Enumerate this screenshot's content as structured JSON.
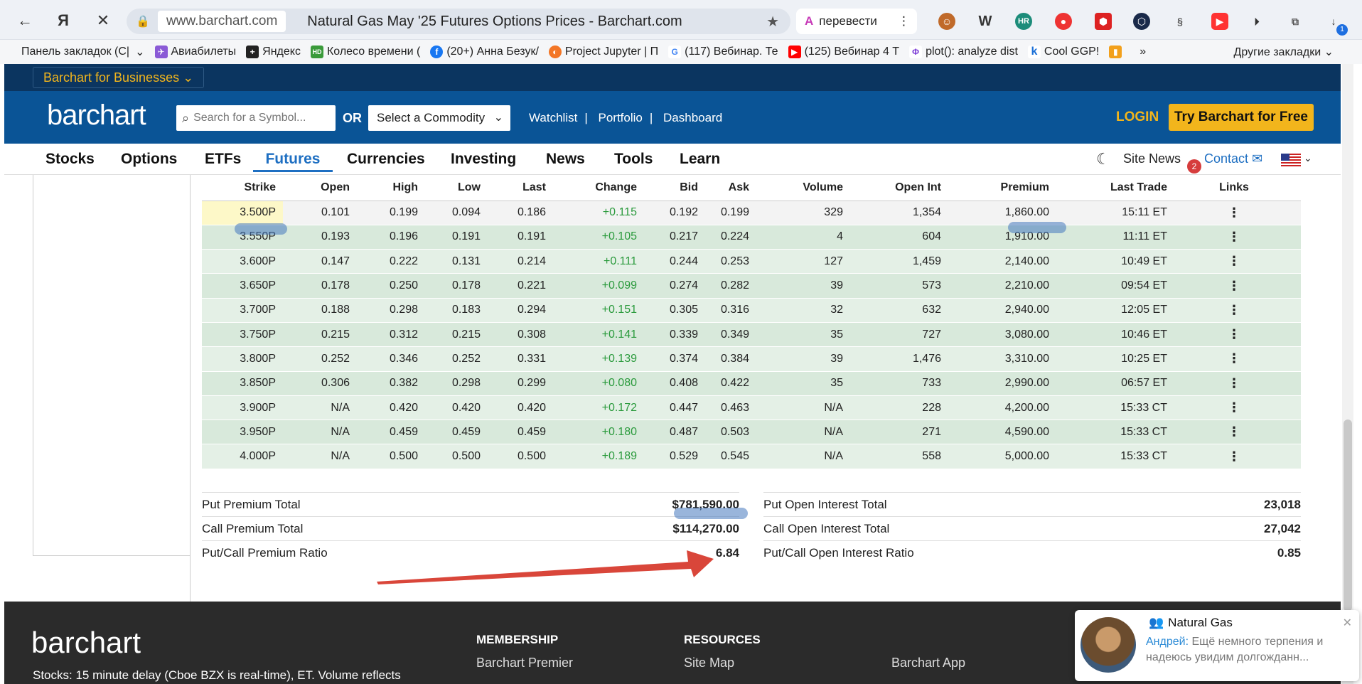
{
  "browser": {
    "url": "www.barchart.com",
    "tab_title": "Natural Gas May '25 Futures Options Prices - Barchart.com",
    "translate_label": "перевести",
    "bookmarks": [
      "Панель закладок (С|",
      "Авиабилеты",
      "Яндекс",
      "Колесо времени (",
      "(20+) Анна Безук/",
      "Project Jupyter | П",
      "(117) Вебинар. Те",
      "(125) Вебинар 4 Т",
      "plot(): analyze dist",
      "Cool GGP!"
    ],
    "bookmarks_more": "»",
    "other_bookmarks": "Другие закладки",
    "download_badge": "1"
  },
  "site": {
    "biz_label": "Barchart for Businesses",
    "logo": "barchart",
    "search_placeholder": "Search for a Symbol...",
    "or_label": "OR",
    "commodity_select": "Select a Commodity",
    "top_links": [
      "Watchlist",
      "Portfolio",
      "Dashboard"
    ],
    "login": "LOGIN",
    "try_free": "Try Barchart for Free",
    "nav": [
      "Stocks",
      "Options",
      "ETFs",
      "Futures",
      "Currencies",
      "Investing",
      "News",
      "Tools",
      "Learn"
    ],
    "active_nav": "Futures",
    "site_news": "Site News",
    "news_badge": "2",
    "contact": "Contact"
  },
  "table": {
    "headers": [
      "Strike",
      "Open",
      "High",
      "Low",
      "Last",
      "Change",
      "Bid",
      "Ask",
      "Volume",
      "Open Int",
      "Premium",
      "Last Trade",
      "Links"
    ],
    "rows": [
      [
        "3.500P",
        "0.101",
        "0.199",
        "0.094",
        "0.186",
        "+0.115",
        "0.192",
        "0.199",
        "329",
        "1,354",
        "1,860.00",
        "15:11 ET"
      ],
      [
        "3.550P",
        "0.193",
        "0.196",
        "0.191",
        "0.191",
        "+0.105",
        "0.217",
        "0.224",
        "4",
        "604",
        "1,910.00",
        "11:11 ET"
      ],
      [
        "3.600P",
        "0.147",
        "0.222",
        "0.131",
        "0.214",
        "+0.111",
        "0.244",
        "0.253",
        "127",
        "1,459",
        "2,140.00",
        "10:49 ET"
      ],
      [
        "3.650P",
        "0.178",
        "0.250",
        "0.178",
        "0.221",
        "+0.099",
        "0.274",
        "0.282",
        "39",
        "573",
        "2,210.00",
        "09:54 ET"
      ],
      [
        "3.700P",
        "0.188",
        "0.298",
        "0.183",
        "0.294",
        "+0.151",
        "0.305",
        "0.316",
        "32",
        "632",
        "2,940.00",
        "12:05 ET"
      ],
      [
        "3.750P",
        "0.215",
        "0.312",
        "0.215",
        "0.308",
        "+0.141",
        "0.339",
        "0.349",
        "35",
        "727",
        "3,080.00",
        "10:46 ET"
      ],
      [
        "3.800P",
        "0.252",
        "0.346",
        "0.252",
        "0.331",
        "+0.139",
        "0.374",
        "0.384",
        "39",
        "1,476",
        "3,310.00",
        "10:25 ET"
      ],
      [
        "3.850P",
        "0.306",
        "0.382",
        "0.298",
        "0.299",
        "+0.080",
        "0.408",
        "0.422",
        "35",
        "733",
        "2,990.00",
        "06:57 ET"
      ],
      [
        "3.900P",
        "N/A",
        "0.420",
        "0.420",
        "0.420",
        "+0.172",
        "0.447",
        "0.463",
        "N/A",
        "228",
        "4,200.00",
        "15:33 CT"
      ],
      [
        "3.950P",
        "N/A",
        "0.459",
        "0.459",
        "0.459",
        "+0.180",
        "0.487",
        "0.503",
        "N/A",
        "271",
        "4,590.00",
        "15:33 CT"
      ],
      [
        "4.000P",
        "N/A",
        "0.500",
        "0.500",
        "0.500",
        "+0.189",
        "0.529",
        "0.545",
        "N/A",
        "558",
        "5,000.00",
        "15:33 CT"
      ]
    ],
    "links_glyph": "⋮"
  },
  "totals": {
    "left": [
      {
        "label": "Put Premium Total",
        "value": "$781,590.00"
      },
      {
        "label": "Call Premium Total",
        "value": "$114,270.00"
      },
      {
        "label": "Put/Call Premium Ratio",
        "value": "6.84"
      }
    ],
    "right": [
      {
        "label": "Put Open Interest Total",
        "value": "23,018"
      },
      {
        "label": "Call Open Interest Total",
        "value": "27,042"
      },
      {
        "label": "Put/Call Open Interest Ratio",
        "value": "0.85"
      }
    ]
  },
  "footer": {
    "logo": "barchart",
    "delay_text": "Stocks: 15 minute delay (Cboe BZX is real-time), ET. Volume reflects",
    "membership_head": "MEMBERSHIP",
    "membership_link": "Barchart Premier",
    "resources_head": "RESOURCES",
    "resources_link": "Site Map",
    "app_link": "Barchart App"
  },
  "toast": {
    "group": "Natural Gas",
    "sender": "Андрей:",
    "message": "Ещё немного терпения и надеюсь увидим долгожданн..."
  },
  "colors": {
    "header_blue": "#0a5496",
    "accent_yellow": "#f2b51c",
    "positive_green": "#2a9a3c",
    "annotation_arrow": "#d9463a"
  }
}
